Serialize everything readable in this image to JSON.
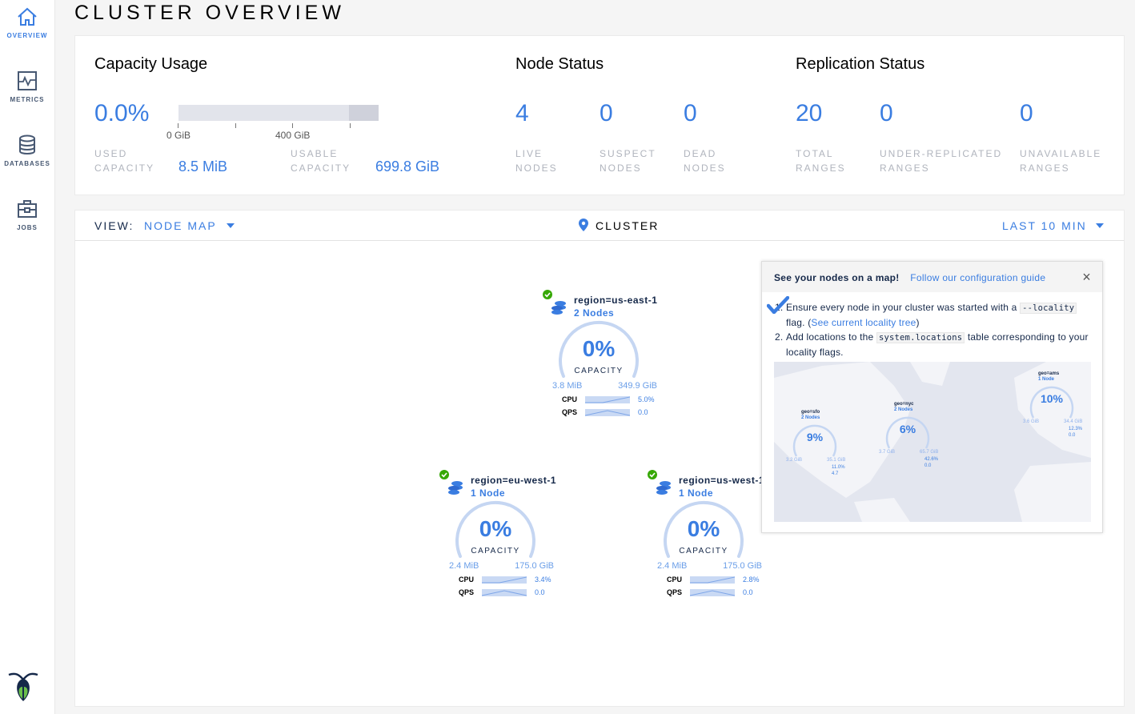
{
  "sidebar": {
    "items": [
      {
        "label": "OVERVIEW",
        "icon": "home-icon",
        "active": true
      },
      {
        "label": "METRICS",
        "icon": "chart-icon"
      },
      {
        "label": "DATABASES",
        "icon": "database-icon"
      },
      {
        "label": "JOBS",
        "icon": "briefcase-icon"
      }
    ],
    "logo": "cockroach-logo"
  },
  "page": {
    "title": "CLUSTER OVERVIEW"
  },
  "capacity": {
    "title": "Capacity Usage",
    "percent": "0.0%",
    "used_fraction": 0.0,
    "tick_labels": [
      "0 GiB",
      "400 GiB"
    ],
    "used_label": "USED CAPACITY",
    "used_value": "8.5 MiB",
    "usable_label": "USABLE CAPACITY",
    "usable_value": "699.8 GiB"
  },
  "node_status": {
    "title": "Node Status",
    "stats": [
      {
        "value": "4",
        "label": "LIVE NODES"
      },
      {
        "value": "0",
        "label": "SUSPECT NODES"
      },
      {
        "value": "0",
        "label": "DEAD NODES"
      }
    ]
  },
  "replication": {
    "title": "Replication Status",
    "stats": [
      {
        "value": "20",
        "label": "TOTAL RANGES"
      },
      {
        "value": "0",
        "label": "UNDER-REPLICATED RANGES"
      },
      {
        "value": "0",
        "label": "UNAVAILABLE RANGES"
      }
    ]
  },
  "viewbar": {
    "view_label": "VIEW:",
    "view_value": "NODE MAP",
    "location": "CLUSTER",
    "time": "LAST 10 MIN"
  },
  "nodes": [
    {
      "title": "region=us-east-1",
      "count": "2 Nodes",
      "percent": "0%",
      "capacity_label": "CAPACITY",
      "used": "3.8 MiB",
      "total": "349.9 GiB",
      "cpu_label": "CPU",
      "cpu": "5.0%",
      "qps_label": "QPS",
      "qps": "0.0",
      "status": "healthy"
    },
    {
      "title": "region=eu-west-1",
      "count": "1 Node",
      "percent": "0%",
      "capacity_label": "CAPACITY",
      "used": "2.4 MiB",
      "total": "175.0 GiB",
      "cpu_label": "CPU",
      "cpu": "3.4%",
      "qps_label": "QPS",
      "qps": "0.0",
      "status": "healthy"
    },
    {
      "title": "region=us-west-1",
      "count": "1 Node",
      "percent": "0%",
      "capacity_label": "CAPACITY",
      "used": "2.4 MiB",
      "total": "175.0 GiB",
      "cpu_label": "CPU",
      "cpu": "2.8%",
      "qps_label": "QPS",
      "qps": "0.0",
      "status": "healthy"
    }
  ],
  "popup": {
    "heading": "See your nodes on a map!",
    "link": "Follow our configuration guide",
    "step1_a": "Ensure every node in your cluster was started with a ",
    "step1_code": "--locality",
    "step1_b": " flag. (",
    "step1_link": "See current locality tree",
    "step1_c": ")",
    "step2_a": "Add locations to the ",
    "step2_code": "system.locations",
    "step2_b": " table corresponding to your locality flags.",
    "map_nodes": [
      {
        "title": "geo=sfo",
        "count": "2 Nodes",
        "percent": "9%",
        "used": "3.2 GiB",
        "total": "35.1 GiB",
        "cpu": "11.0%",
        "qps": "4.7"
      },
      {
        "title": "geo=nyc",
        "count": "2 Nodes",
        "percent": "6%",
        "used": "3.7 GiB",
        "total": "65.7 GiB",
        "cpu": "42.6%",
        "qps": "0.0"
      },
      {
        "title": "geo=ams",
        "count": "1 Node",
        "percent": "10%",
        "used": "3.6 GiB",
        "total": "34.4 GiB",
        "cpu": "12.3%",
        "qps": "0.0"
      }
    ]
  },
  "colors": {
    "accent": "#3a7de1",
    "healthy": "#37a806",
    "text": "#152849"
  }
}
